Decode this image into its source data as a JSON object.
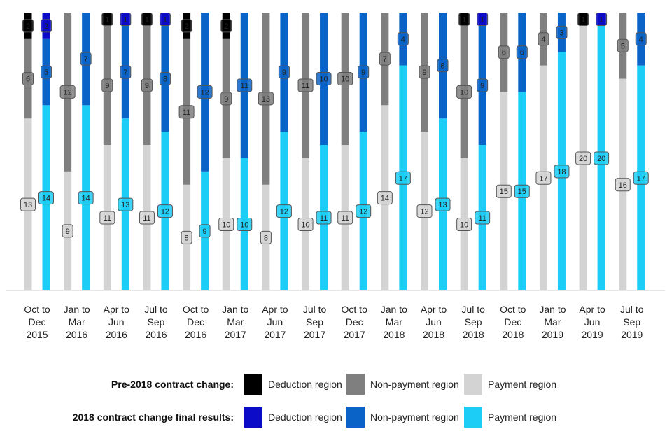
{
  "chart_data": {
    "type": "bar",
    "stacked": true,
    "percent_stacked": true,
    "categories": [
      [
        "Oct to",
        "Dec",
        "2015"
      ],
      [
        "Jan to",
        "Mar",
        "2016"
      ],
      [
        "Apr to",
        "Jun",
        "2016"
      ],
      [
        "Jul to",
        "Sep",
        "2016"
      ],
      [
        "Oct to",
        "Dec",
        "2016"
      ],
      [
        "Jan to",
        "Mar",
        "2017"
      ],
      [
        "Apr to",
        "Jun",
        "2017"
      ],
      [
        "Jul to",
        "Sep",
        "2017"
      ],
      [
        "Oct to",
        "Dec",
        "2017"
      ],
      [
        "Jan to",
        "Mar",
        "2018"
      ],
      [
        "Apr to",
        "Jun",
        "2018"
      ],
      [
        "Jul to",
        "Sep",
        "2018"
      ],
      [
        "Oct to",
        "Dec",
        "2018"
      ],
      [
        "Jan to",
        "Mar",
        "2019"
      ],
      [
        "Apr to",
        "Jun",
        "2019"
      ],
      [
        "Jul to",
        "Sep",
        "2019"
      ]
    ],
    "groups": [
      {
        "name": "Pre-2018 contract change:",
        "series": [
          {
            "name": "Payment region",
            "color": "#d3d3d3",
            "values": [
              13,
              9,
              11,
              11,
              8,
              10,
              8,
              10,
              11,
              14,
              12,
              10,
              15,
              17,
              20,
              16
            ]
          },
          {
            "name": "Non-payment region",
            "color": "#7f7f7f",
            "values": [
              6,
              12,
              9,
              9,
              11,
              9,
              13,
              11,
              10,
              7,
              9,
              10,
              6,
              4,
              0,
              5
            ]
          },
          {
            "name": "Deduction region",
            "color": "#000000",
            "values": [
              2,
              0,
              1,
              1,
              2,
              2,
              0,
              0,
              0,
              0,
              0,
              1,
              0,
              0,
              1,
              0
            ]
          }
        ]
      },
      {
        "name": "2018 contract change final results:",
        "series": [
          {
            "name": "Payment region",
            "color": "#1ccdf5",
            "values": [
              14,
              14,
              13,
              12,
              9,
              10,
              12,
              11,
              12,
              17,
              13,
              11,
              15,
              18,
              20,
              17
            ]
          },
          {
            "name": "Non-payment region",
            "color": "#0a64c8",
            "values": [
              5,
              7,
              7,
              8,
              12,
              11,
              9,
              10,
              9,
              4,
              8,
              9,
              6,
              3,
              0,
              4
            ]
          },
          {
            "name": "Deduction region",
            "color": "#0c0cc8",
            "values": [
              2,
              0,
              1,
              1,
              0,
              0,
              0,
              0,
              0,
              0,
              0,
              1,
              0,
              0,
              1,
              0
            ]
          }
        ]
      }
    ],
    "grid": false,
    "legend_position": "bottom"
  }
}
